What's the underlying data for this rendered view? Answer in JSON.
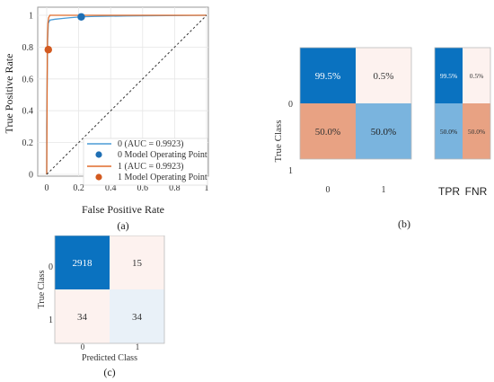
{
  "chart_data": [
    {
      "type": "line",
      "panel": "a",
      "xlabel": "False Positive Rate",
      "ylabel": "True Positive Rate",
      "xlim": [
        0,
        1
      ],
      "ylim": [
        0,
        1
      ],
      "x_ticks": [
        "0",
        "0.2",
        "0.4",
        "0.6",
        "0.8",
        "1"
      ],
      "y_ticks": [
        "0",
        "0.2",
        "0.4",
        "0.6",
        "0.8",
        "1"
      ],
      "grid": true,
      "series": [
        {
          "name": "0 (AUC = 0.9923)",
          "color": "#4a9bd6",
          "x": [
            0,
            0,
            0.003,
            0.006,
            0.01,
            0.02,
            0.05,
            0.1,
            0.15,
            0.216,
            0.3,
            0.5,
            0.75,
            1
          ],
          "y": [
            0,
            0.3,
            0.6,
            0.85,
            0.95,
            0.97,
            0.975,
            0.98,
            0.985,
            0.99,
            0.993,
            0.996,
            0.998,
            1
          ]
        },
        {
          "name": "1 (AUC = 0.9923)",
          "color": "#e06c2b",
          "x": [
            0,
            0.001,
            0.003,
            0.005,
            0.008,
            0.012,
            0.02,
            0.05,
            0.1,
            0.2,
            1
          ],
          "y": [
            0,
            0.2,
            0.6,
            0.85,
            0.95,
            0.985,
            1,
            1,
            1,
            1,
            1
          ]
        },
        {
          "name": "diagonal",
          "color": "#333333",
          "style": "dashed",
          "x": [
            0,
            1
          ],
          "y": [
            0,
            1
          ]
        }
      ],
      "operating_points": [
        {
          "name": "0 Model Operating Point",
          "color": "#1f6fb4",
          "x": 0.216,
          "y": 0.99
        },
        {
          "name": "1 Model Operating Point",
          "color": "#d35a20",
          "x": 0.01,
          "y": 0.784
        }
      ],
      "legend_placement": "bottom-right",
      "caption": "(a)"
    },
    {
      "type": "heatmap",
      "panel": "b",
      "ylabel": "True Class",
      "row_labels": [
        "0",
        "1"
      ],
      "col_labels": [
        "0",
        "1"
      ],
      "values": [
        [
          99.5,
          0.5
        ],
        [
          50.0,
          50.0
        ]
      ],
      "text": [
        [
          "99.5%",
          "0.5%"
        ],
        [
          "50.0%",
          "50.0%"
        ]
      ],
      "side_summary": {
        "col_labels": [
          "TPR",
          "FNR"
        ],
        "text": [
          [
            "99.5%",
            "0.5%"
          ],
          [
            "50.0%",
            "50.0%"
          ]
        ]
      },
      "caption": "(b)"
    },
    {
      "type": "heatmap",
      "panel": "c",
      "ylabel": "True Class",
      "xlabel": "Predicted Class",
      "row_labels": [
        "0",
        "1"
      ],
      "col_labels": [
        "0",
        "1"
      ],
      "values": [
        [
          2918,
          15
        ],
        [
          34,
          34
        ]
      ],
      "caption": "(c)"
    }
  ],
  "colors": {
    "strong_blue": "#0a72c0",
    "light_pink": "#fdf2ef",
    "salmon": "#e8a283",
    "light_blue": "#7ab4de",
    "pale_blue": "#e9f1f8"
  }
}
